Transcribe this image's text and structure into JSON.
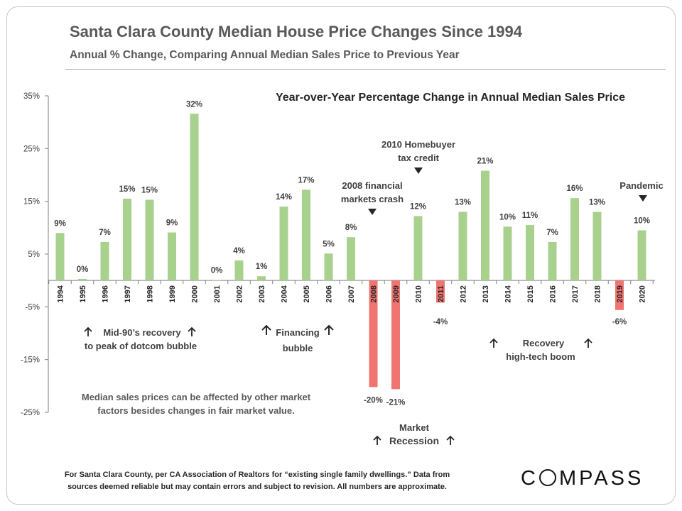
{
  "page": {
    "title": "Santa Clara County Median House Price Changes Since 1994",
    "subtitle": "Annual % Change, Comparing Annual Median Sales Price to Previous Year",
    "footnote_line1": "For Santa Clara County, per CA Association of Realtors for “existing single family dwellings.” Data from",
    "footnote_line2": "sources deemed reliable but may contain errors and subject to revision. All numbers are approximate.",
    "logo_text": "COMPASS"
  },
  "chart_data": {
    "type": "bar",
    "title": "Year-over-Year Percentage Change in Annual Median Sales Price",
    "categories": [
      "1994",
      "1995",
      "1996",
      "1997",
      "1998",
      "1999",
      "2000",
      "2001",
      "2002",
      "2003",
      "2004",
      "2005",
      "2006",
      "2007",
      "2008",
      "2009",
      "2010",
      "2011",
      "2012",
      "2013",
      "2014",
      "2015",
      "2016",
      "2017",
      "2018",
      "2019",
      "2020"
    ],
    "values": [
      9,
      0.3,
      7.3,
      15.5,
      15.3,
      9.1,
      31.6,
      0.1,
      3.8,
      0.8,
      14,
      17.2,
      5.1,
      8.2,
      -20.2,
      -20.6,
      12.2,
      -4.2,
      13,
      20.8,
      10.2,
      10.5,
      7.3,
      15.6,
      13,
      -5.6,
      9.5
    ],
    "data_labels": [
      "9%",
      "0%",
      "7%",
      "15%",
      "15%",
      "9%",
      "32%",
      "0%",
      "4%",
      "1%",
      "14%",
      "17%",
      "5%",
      "8%",
      "-20%",
      "-21%",
      "12%",
      "-4%",
      "13%",
      "21%",
      "10%",
      "11%",
      "7%",
      "16%",
      "13%",
      "-6%",
      "10%"
    ],
    "ylim": [
      -25,
      35
    ],
    "yticks": [
      35,
      25,
      15,
      5,
      -5,
      -15,
      -25
    ],
    "ytick_labels": [
      "35%",
      "25%",
      "15%",
      "5%",
      "-5%",
      "-15%",
      "-25%"
    ],
    "xlabel": "",
    "ylabel": "",
    "grid": false,
    "colors": {
      "positive": "#a9d18e",
      "negative": "#f07470"
    },
    "annotations": {
      "mid90s_line1": "Mid-90’s recovery",
      "mid90s_line2": "to peak of dotcom bubble",
      "financing_line1": "Financing",
      "financing_line2": "bubble",
      "crash2008_line1": "2008 financial",
      "crash2008_line2": "markets crash",
      "credit2010_line1": "2010 Homebuyer",
      "credit2010_line2": "tax credit",
      "recovery_line1": "Recovery",
      "recovery_line2": "high-tech boom",
      "pandemic": "Pandemic",
      "recession_line1": "Market",
      "recession_line2": "Recession",
      "note_line1": "Median sales prices can be affected by other market",
      "note_line2": "factors besides changes in fair market value."
    }
  }
}
